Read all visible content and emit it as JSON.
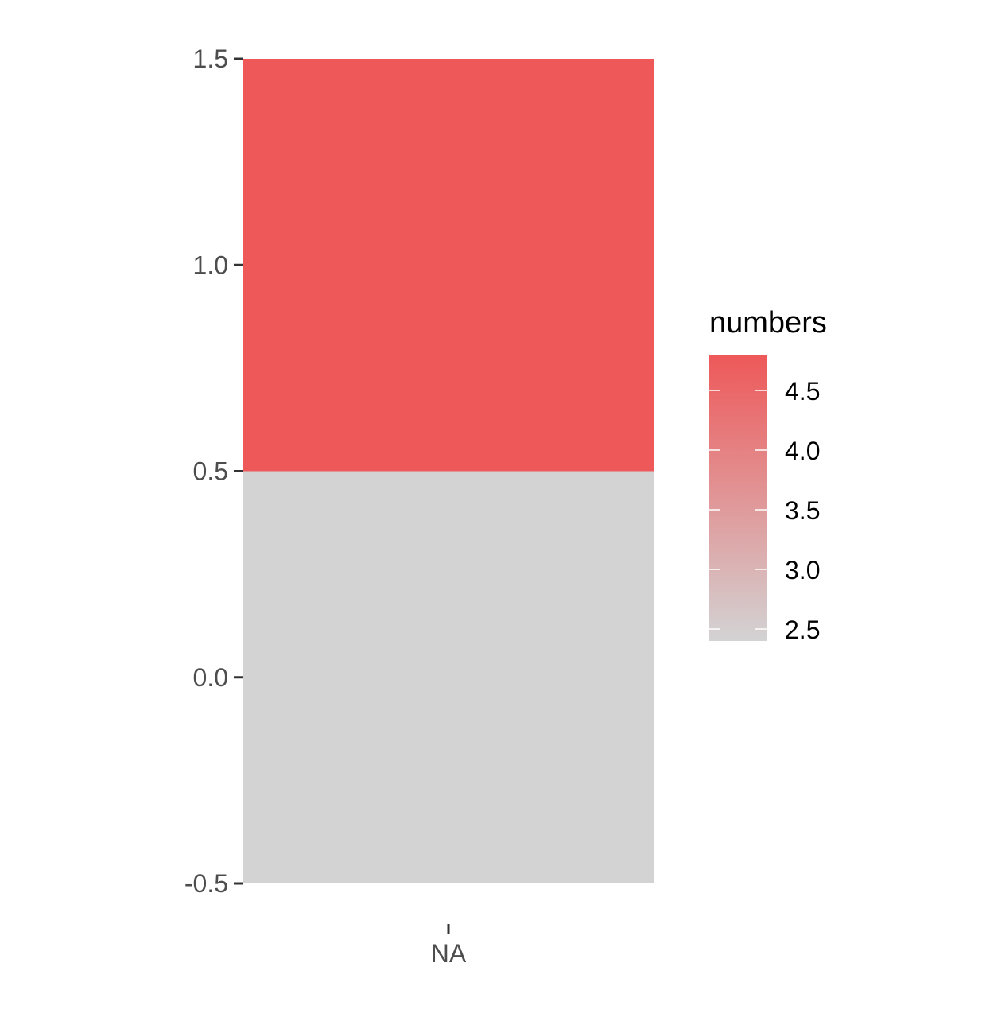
{
  "chart_data": {
    "type": "heatmap",
    "x_categories": [
      "NA"
    ],
    "y_ticks": [
      -0.5,
      0.0,
      0.5,
      1.0,
      1.5
    ],
    "y_tick_labels": [
      "-0.5",
      "0.0",
      "0.5",
      "1.0",
      "1.5"
    ],
    "ylim": [
      -0.5,
      1.5
    ],
    "tiles": [
      {
        "x": "NA",
        "y": 0,
        "height": 1,
        "value": null
      },
      {
        "x": "NA",
        "y": 1,
        "height": 1,
        "value": 4.8
      }
    ],
    "legend": {
      "title": "numbers",
      "placement": "right",
      "range": [
        2.4,
        4.8
      ],
      "breaks": [
        2.5,
        3.0,
        3.5,
        4.0,
        4.5
      ],
      "break_labels": [
        "2.5",
        "3.0",
        "3.5",
        "4.0",
        "4.5"
      ]
    },
    "colors": {
      "low": "#d3d3d4",
      "high": "#ee5859",
      "na_value": "#d3d3d4",
      "axis_text": "#4d4d4d",
      "tick": "#333333"
    },
    "grid": false
  }
}
